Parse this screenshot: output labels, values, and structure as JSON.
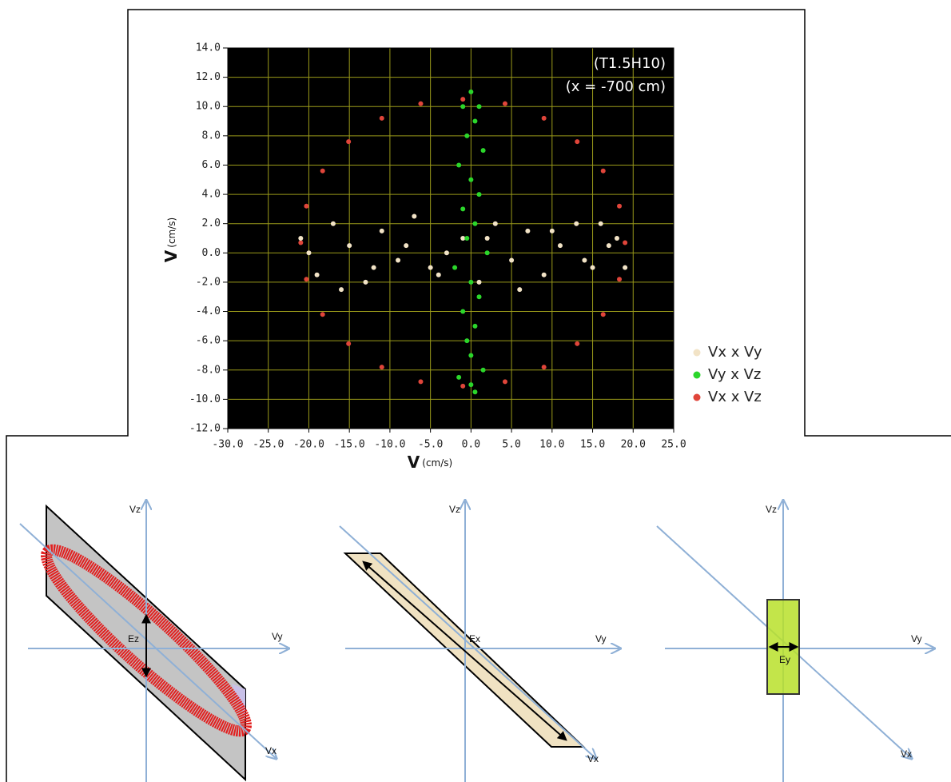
{
  "chart_data": {
    "type": "scatter",
    "annotations": [
      "(T1.5H10)",
      "(x = -700 cm)"
    ],
    "xlabel": "V",
    "xlabel_unit": "(cm/s)",
    "ylabel": "V",
    "ylabel_unit": "(cm/s)",
    "xlim": [
      -30,
      25
    ],
    "ylim": [
      -12,
      14
    ],
    "xticks": [
      {
        "value": -30,
        "label": "-30.0"
      },
      {
        "value": -25,
        "label": "-25.0"
      },
      {
        "value": -20,
        "label": "-20.0"
      },
      {
        "value": -15,
        "label": "-15.0"
      },
      {
        "value": -10,
        "label": "-10.0"
      },
      {
        "value": -5,
        "label": "-5.0"
      },
      {
        "value": 0,
        "label": "0.0"
      },
      {
        "value": 5,
        "label": "5.0"
      },
      {
        "value": 10,
        "label": "10.0"
      },
      {
        "value": 15,
        "label": "15.0"
      },
      {
        "value": 20,
        "label": "20.0"
      },
      {
        "value": 25,
        "label": "25.0"
      }
    ],
    "yticks": [
      {
        "value": 14,
        "label": "14.0"
      },
      {
        "value": 12,
        "label": "12.0"
      },
      {
        "value": 10,
        "label": "10.0"
      },
      {
        "value": 8,
        "label": "8.0"
      },
      {
        "value": 6,
        "label": "6.0"
      },
      {
        "value": 4,
        "label": "4.0"
      },
      {
        "value": 2,
        "label": "2.0"
      },
      {
        "value": 0,
        "label": "0.0"
      },
      {
        "value": -2,
        "label": "-2.0"
      },
      {
        "value": -4,
        "label": "-4.0"
      },
      {
        "value": -6,
        "label": "-6.0"
      },
      {
        "value": -8,
        "label": "-8.0"
      },
      {
        "value": -10,
        "label": "-10.0"
      },
      {
        "value": -12,
        "label": "-12.0"
      }
    ],
    "grid": true,
    "grid_color": "#9a9a1a",
    "background": "#000000",
    "legend": "lower right",
    "series": [
      {
        "name": "Vx x Vz",
        "color": "#e0453a",
        "x": [
          19,
          18.3,
          16.3,
          13.1,
          9,
          4.2,
          -1,
          -6.2,
          -11,
          -15.1,
          -18.3,
          -20.3,
          -21,
          -20.3,
          -18.3,
          -15.1,
          -11,
          -6.2,
          -1,
          4.2,
          9,
          13.1,
          16.3,
          18.3
        ],
        "values": [
          0.7,
          3.2,
          5.6,
          7.6,
          9.2,
          10.2,
          10.5,
          10.2,
          9.2,
          7.6,
          5.6,
          3.2,
          0.7,
          -1.8,
          -4.2,
          -6.2,
          -7.8,
          -8.8,
          -9.1,
          -8.8,
          -7.8,
          -6.2,
          -4.2,
          -1.8
        ]
      },
      {
        "name": "Vx x Vy",
        "color": "#f2e3c6",
        "x": [
          -21,
          -19,
          -17,
          -15,
          -13,
          -11,
          -9,
          -7,
          -5,
          -3,
          -1,
          1,
          3,
          5,
          7,
          9,
          11,
          13,
          15,
          17,
          18,
          -20,
          -16,
          -12,
          -8,
          -4,
          2,
          6,
          10,
          14,
          16,
          19
        ],
        "values": [
          1,
          -1.5,
          2,
          0.5,
          -2,
          1.5,
          -0.5,
          2.5,
          -1,
          0,
          1,
          -2,
          2,
          -0.5,
          1.5,
          -1.5,
          0.5,
          2,
          -1,
          0.5,
          1,
          0,
          -2.5,
          -1,
          0.5,
          -1.5,
          1,
          -2.5,
          1.5,
          -0.5,
          2,
          -1
        ]
      },
      {
        "name": "Vy x Vz",
        "color": "#2bd62b",
        "x": [
          0,
          -1,
          1,
          0.5,
          -0.5,
          1.5,
          -1.5,
          0,
          1,
          -1,
          0.5,
          -0.5,
          2,
          -2,
          0,
          1,
          -1,
          0.5,
          -0.5,
          0,
          1.5,
          -1.5,
          0,
          0.5
        ],
        "values": [
          11,
          10,
          10,
          9,
          8,
          7,
          6,
          5,
          4,
          3,
          2,
          1,
          0,
          -1,
          -2,
          -3,
          -4,
          -5,
          -6,
          -7,
          -8,
          -8.5,
          -9,
          -9.5
        ]
      }
    ]
  },
  "diagrams": [
    {
      "axis_labels": [
        "Vz",
        "Vy",
        "Vx"
      ],
      "field_label": "Ez"
    },
    {
      "axis_labels": [
        "Vz",
        "Vy",
        "Vx"
      ],
      "field_label": "Ex"
    },
    {
      "axis_labels": [
        "Vz",
        "Vy",
        "Vx"
      ],
      "field_label": "Ey"
    }
  ]
}
